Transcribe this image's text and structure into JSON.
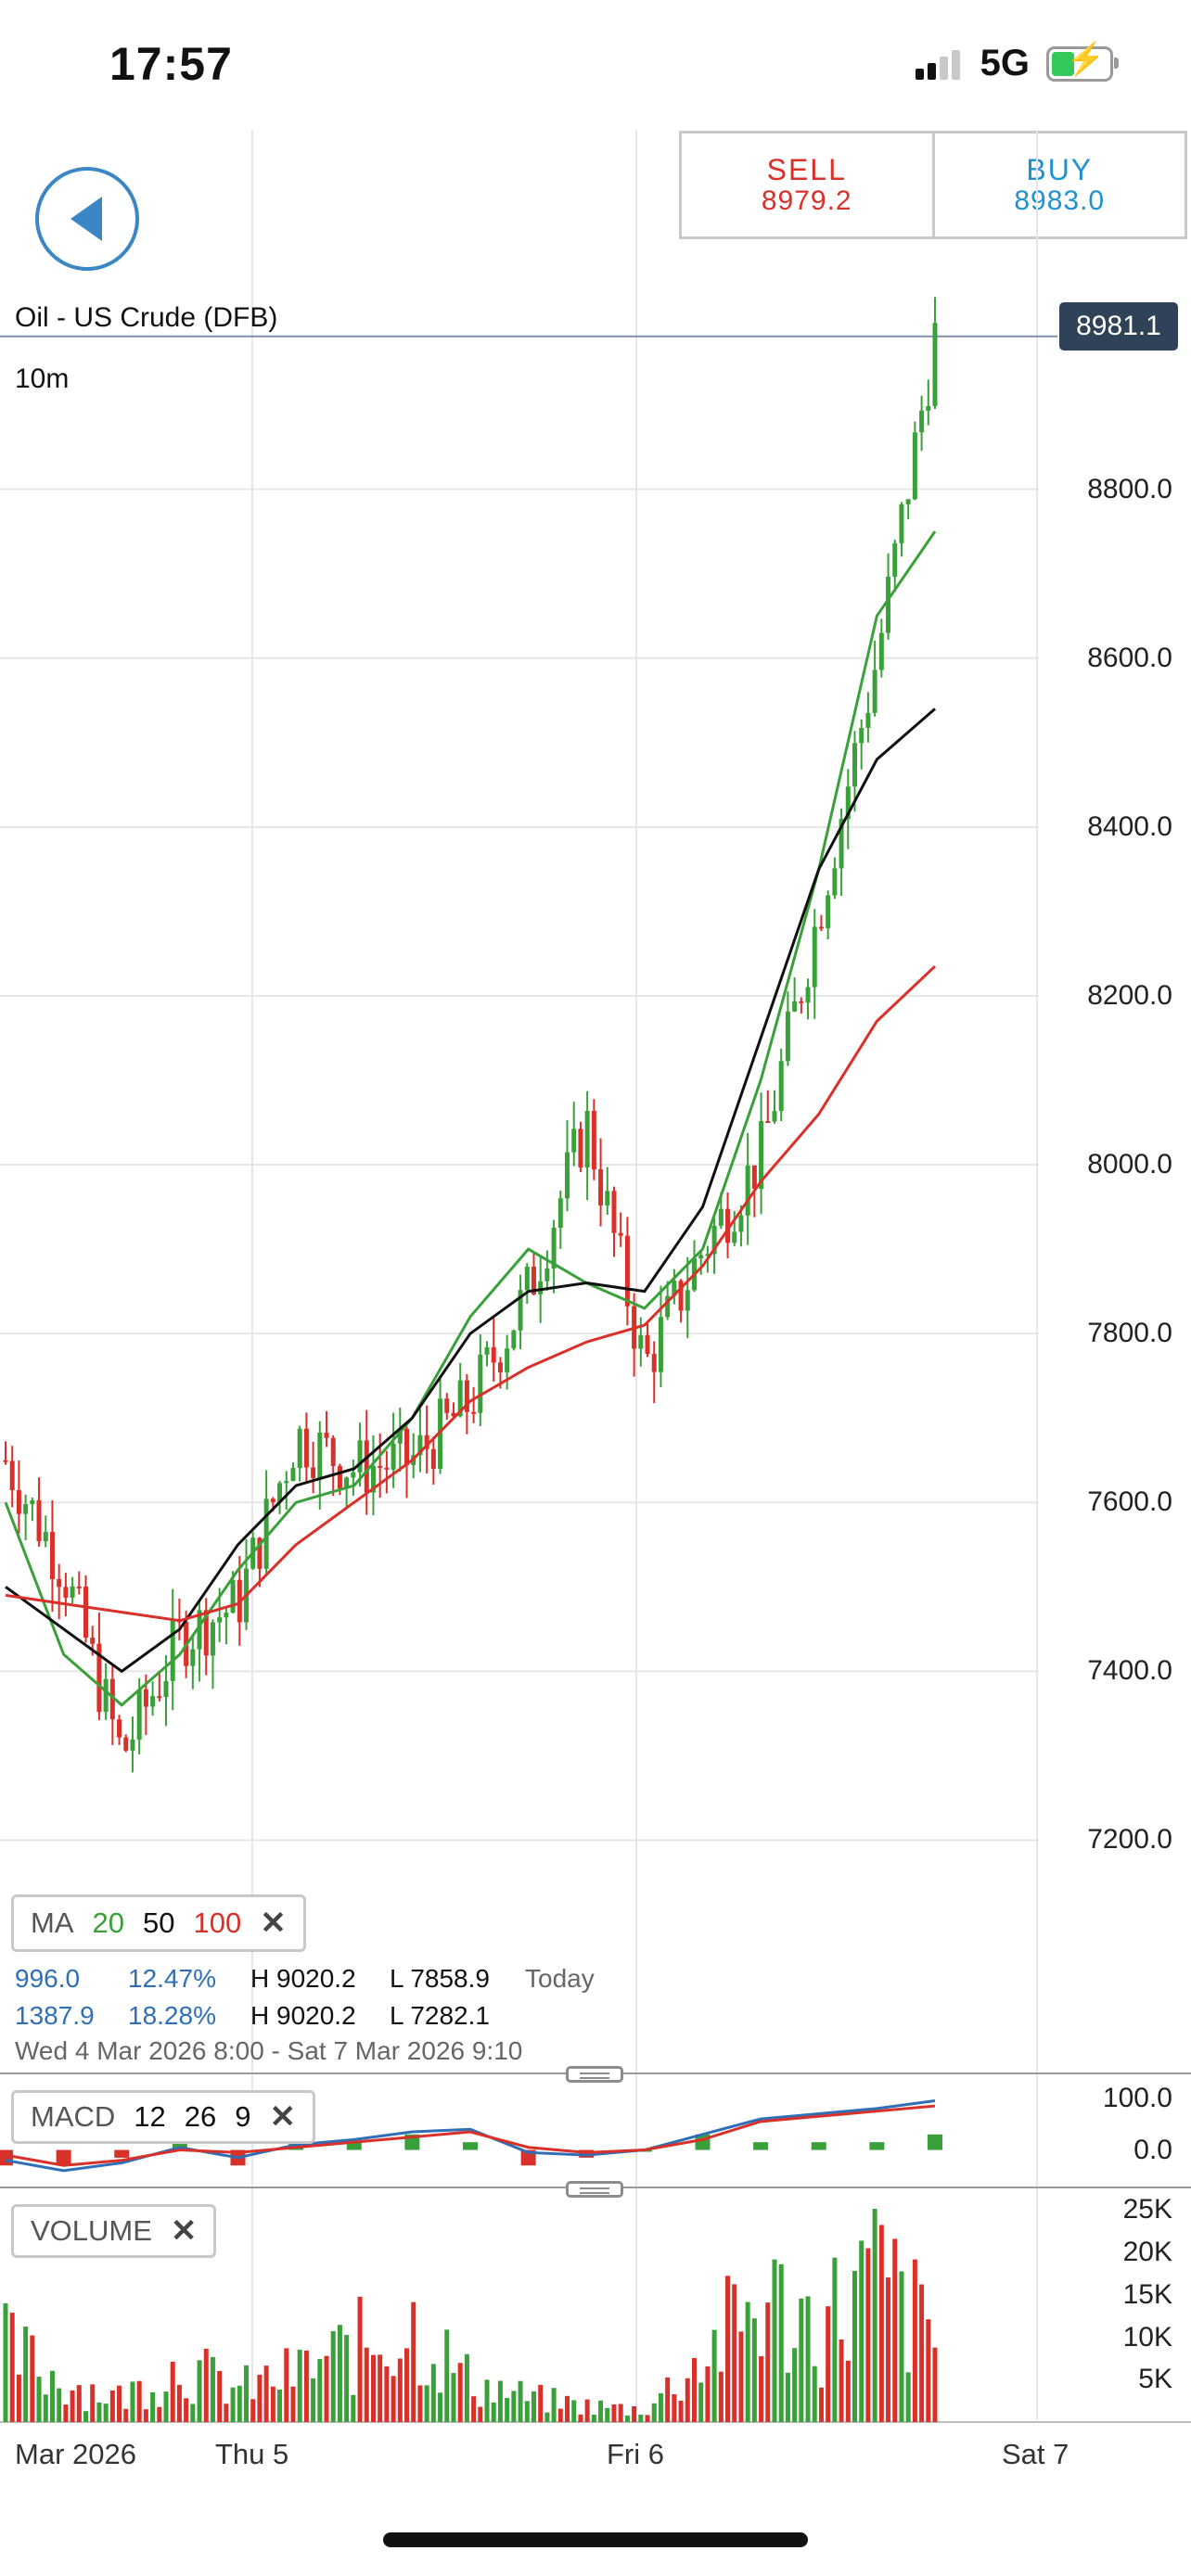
{
  "status_bar": {
    "time": "17:57",
    "network": "5G"
  },
  "trade": {
    "sell_label": "SELL",
    "sell_price": "8979.2",
    "buy_label": "BUY",
    "buy_price": "8983.0"
  },
  "instrument": {
    "name": "Oil - US Crude (DFB)",
    "timeframe": "10m",
    "current_price": "8981.1"
  },
  "price_axis": {
    "ticks": [
      "8800.0",
      "8600.0",
      "8400.0",
      "8200.0",
      "8000.0",
      "7800.0",
      "7600.0",
      "7400.0",
      "7200.0"
    ]
  },
  "ma_legend": {
    "label": "MA",
    "p1": "20",
    "p2": "50",
    "p3": "100",
    "close": "✕"
  },
  "stats": {
    "row1": {
      "change": "996.0",
      "pct": "12.47%",
      "high": "H 9020.2",
      "low": "L 7858.9",
      "period": "Today"
    },
    "row2": {
      "change": "1387.9",
      "pct": "18.28%",
      "high": "H 9020.2",
      "low": "L 7282.1"
    },
    "range": "Wed 4 Mar 2026 8:00 - Sat 7 Mar 2026 9:10"
  },
  "macd_legend": {
    "label": "MACD",
    "fast": "12",
    "slow": "26",
    "signal": "9",
    "close": "✕"
  },
  "macd_axis": {
    "ticks": [
      "100.0",
      "0.0"
    ]
  },
  "volume_legend": {
    "label": "VOLUME",
    "close": "✕"
  },
  "volume_axis": {
    "ticks": [
      "25K",
      "20K",
      "15K",
      "10K",
      "5K"
    ]
  },
  "time_axis": {
    "ticks": [
      "Mar 2026",
      "Thu 5",
      "Fri 6",
      "Sat 7"
    ]
  },
  "colors": {
    "up": "#3aa03a",
    "down": "#d9302a",
    "ma20": "#3aa03a",
    "ma50": "#111111",
    "ma100": "#d9302a",
    "macd": "#2f6fb7",
    "signal": "#d9302a",
    "accent": "#3b87c6"
  },
  "chart_data": {
    "type": "line",
    "title": "Oil - US Crude (DFB)",
    "xlabel": "",
    "ylabel": "",
    "x": [
      "Mar 2026 (Wed 4)",
      "",
      "Thu 5",
      "",
      "",
      "",
      "",
      "",
      "",
      "Fri 6",
      "",
      "",
      "",
      "",
      "",
      "",
      ""
    ],
    "ylim": [
      7150,
      9050
    ],
    "series": [
      {
        "name": "Price",
        "values": [
          7650,
          7520,
          7300,
          7440,
          7480,
          7680,
          7640,
          7650,
          7720,
          7850,
          8050,
          7760,
          7900,
          8010,
          8300,
          8600,
          8981
        ]
      },
      {
        "name": "MA 20",
        "values": [
          7600,
          7420,
          7360,
          7420,
          7520,
          7600,
          7620,
          7700,
          7820,
          7900,
          7860,
          7830,
          7900,
          8100,
          8350,
          8650,
          8750
        ]
      },
      {
        "name": "MA 50",
        "values": [
          7500,
          7450,
          7400,
          7450,
          7550,
          7620,
          7640,
          7700,
          7800,
          7850,
          7860,
          7850,
          7950,
          8150,
          8350,
          8480,
          8540
        ]
      },
      {
        "name": "MA 100",
        "values": [
          7490,
          7480,
          7470,
          7460,
          7480,
          7550,
          7600,
          7650,
          7720,
          7760,
          7790,
          7810,
          7880,
          7980,
          8060,
          8170,
          8235
        ]
      }
    ],
    "macd_range": [
      -60,
      130
    ],
    "macd": [
      -20,
      -40,
      -25,
      5,
      -15,
      10,
      20,
      35,
      40,
      -5,
      -10,
      0,
      30,
      60,
      70,
      80,
      95
    ],
    "macd_signal": [
      -10,
      -30,
      -20,
      0,
      -5,
      5,
      15,
      25,
      35,
      5,
      -5,
      0,
      20,
      55,
      65,
      75,
      85
    ],
    "volume_range": [
      0,
      27000
    ],
    "volume": [
      9000,
      5000,
      3000,
      7000,
      4000,
      6000,
      9000,
      12000,
      5000,
      3000,
      2000,
      1500,
      8000,
      15000,
      12000,
      18000,
      10000
    ]
  }
}
